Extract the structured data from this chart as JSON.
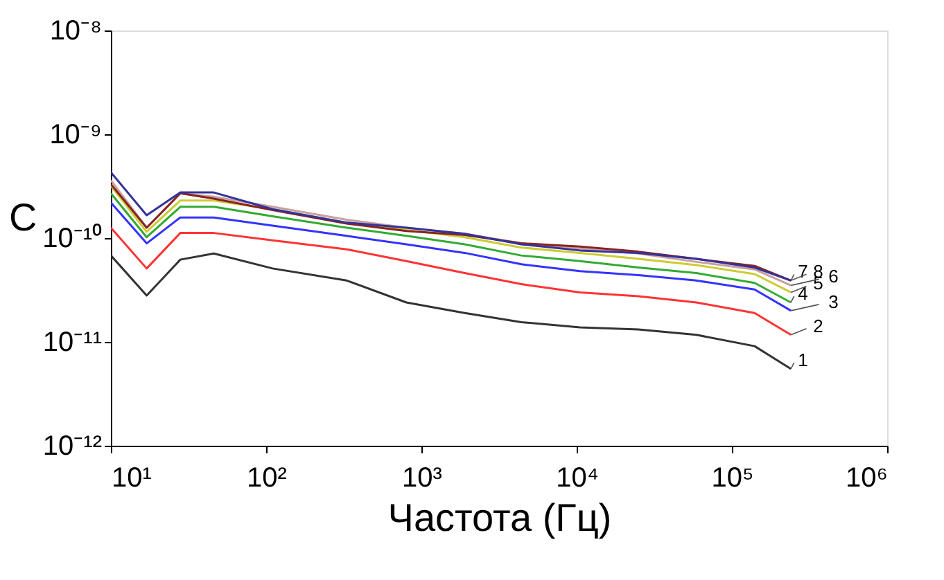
{
  "chart_data": {
    "type": "line",
    "xlabel": "Частота (Гц)",
    "ylabel": "C",
    "log": "xy",
    "grid": false,
    "marker": "none",
    "line_style": "solid",
    "x": [
      10,
      17,
      28,
      46,
      110,
      330,
      800,
      1900,
      4400,
      10500,
      25000,
      59000,
      140000,
      240000
    ],
    "xlim": [
      10,
      1000000
    ],
    "xticks": [
      {
        "value": 10,
        "label": "10¹"
      },
      {
        "value": 100,
        "label": "10²"
      },
      {
        "value": 1000,
        "label": "10³"
      },
      {
        "value": 10000,
        "label": "10⁴"
      },
      {
        "value": 100000,
        "label": "10⁵"
      },
      {
        "value": 1000000,
        "label": "10⁶"
      }
    ],
    "ylim": [
      1e-12,
      1e-08
    ],
    "yticks": [
      {
        "value": 1e-12,
        "label": "10⁻¹²"
      },
      {
        "value": 1e-11,
        "label": "10⁻¹¹"
      },
      {
        "value": 1e-10,
        "label": "10⁻¹⁰"
      },
      {
        "value": 1e-09,
        "label": "10⁻⁹"
      },
      {
        "value": 1e-08,
        "label": "10⁻⁸"
      }
    ],
    "series": [
      {
        "name": "1",
        "color": "#333333",
        "values": [
          6.8e-11,
          2.8e-11,
          6.2e-11,
          7.1e-11,
          5.1e-11,
          3.9e-11,
          2.4e-11,
          1.9e-11,
          1.55e-11,
          1.38e-11,
          1.32e-11,
          1.17e-11,
          9.1e-12,
          5.5e-12
        ]
      },
      {
        "name": "2",
        "color": "#ff3333",
        "values": [
          1.26e-10,
          5.1e-11,
          1.12e-10,
          1.12e-10,
          9.5e-11,
          7.8e-11,
          6e-11,
          4.6e-11,
          3.6e-11,
          3e-11,
          2.75e-11,
          2.4e-11,
          1.9e-11,
          1.17e-11
        ]
      },
      {
        "name": "3",
        "color": "#3333ff",
        "values": [
          2.2e-10,
          8.9e-11,
          1.58e-10,
          1.58e-10,
          1.32e-10,
          1.05e-10,
          8.7e-11,
          7.2e-11,
          5.6e-11,
          4.8e-11,
          4.4e-11,
          3.9e-11,
          3.2e-11,
          2e-11
        ]
      },
      {
        "name": "4",
        "color": "#33aa33",
        "values": [
          2.7e-10,
          1.02e-10,
          2e-10,
          2e-10,
          1.62e-10,
          1.26e-10,
          1.05e-10,
          8.7e-11,
          6.8e-11,
          6e-11,
          5.2e-11,
          4.6e-11,
          3.7e-11,
          2.4e-11
        ]
      },
      {
        "name": "5",
        "color": "#cccc33",
        "values": [
          3.2e-10,
          1.15e-10,
          2.3e-10,
          2.3e-10,
          1.9e-10,
          1.41e-10,
          1.2e-10,
          1.02e-10,
          8.1e-11,
          7.2e-11,
          6.3e-11,
          5.5e-11,
          4.5e-11,
          3e-11
        ]
      },
      {
        "name": "6",
        "color": "#c8a0a0",
        "values": [
          3.6e-10,
          1.26e-10,
          2.7e-10,
          2.5e-10,
          2e-10,
          1.5e-10,
          1.26e-10,
          1.1e-10,
          8.9e-11,
          7.9e-11,
          7.1e-11,
          5.9e-11,
          5e-11,
          3.5e-11
        ]
      },
      {
        "name": "7",
        "color": "#882222",
        "values": [
          3.3e-10,
          1.26e-10,
          2.7e-10,
          2.4e-10,
          1.86e-10,
          1.38e-10,
          1.17e-10,
          1.07e-10,
          8.9e-11,
          8.3e-11,
          7.4e-11,
          6.3e-11,
          5.4e-11,
          3.9e-11
        ]
      },
      {
        "name": "8",
        "color": "#333399",
        "values": [
          4.3e-10,
          1.66e-10,
          2.75e-10,
          2.75e-10,
          1.9e-10,
          1.41e-10,
          1.26e-10,
          1.1e-10,
          8.7e-11,
          7.6e-11,
          7.2e-11,
          6.3e-11,
          5.2e-11,
          3.9e-11
        ]
      }
    ]
  }
}
